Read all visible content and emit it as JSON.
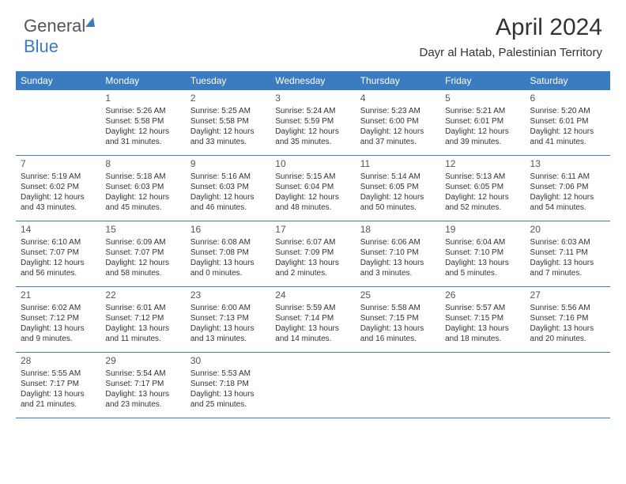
{
  "logo": {
    "text1": "General",
    "text2": "Blue"
  },
  "title": "April 2024",
  "location": "Dayr al Hatab, Palestinian Territory",
  "colors": {
    "header_bg": "#3b7bbf",
    "header_fg": "#ffffff",
    "border": "#3b7bbf",
    "text": "#333333"
  },
  "day_headers": [
    "Sunday",
    "Monday",
    "Tuesday",
    "Wednesday",
    "Thursday",
    "Friday",
    "Saturday"
  ],
  "weeks": [
    [
      null,
      {
        "n": "1",
        "sr": "Sunrise: 5:26 AM",
        "ss": "Sunset: 5:58 PM",
        "d1": "Daylight: 12 hours",
        "d2": "and 31 minutes."
      },
      {
        "n": "2",
        "sr": "Sunrise: 5:25 AM",
        "ss": "Sunset: 5:58 PM",
        "d1": "Daylight: 12 hours",
        "d2": "and 33 minutes."
      },
      {
        "n": "3",
        "sr": "Sunrise: 5:24 AM",
        "ss": "Sunset: 5:59 PM",
        "d1": "Daylight: 12 hours",
        "d2": "and 35 minutes."
      },
      {
        "n": "4",
        "sr": "Sunrise: 5:23 AM",
        "ss": "Sunset: 6:00 PM",
        "d1": "Daylight: 12 hours",
        "d2": "and 37 minutes."
      },
      {
        "n": "5",
        "sr": "Sunrise: 5:21 AM",
        "ss": "Sunset: 6:01 PM",
        "d1": "Daylight: 12 hours",
        "d2": "and 39 minutes."
      },
      {
        "n": "6",
        "sr": "Sunrise: 5:20 AM",
        "ss": "Sunset: 6:01 PM",
        "d1": "Daylight: 12 hours",
        "d2": "and 41 minutes."
      }
    ],
    [
      {
        "n": "7",
        "sr": "Sunrise: 5:19 AM",
        "ss": "Sunset: 6:02 PM",
        "d1": "Daylight: 12 hours",
        "d2": "and 43 minutes."
      },
      {
        "n": "8",
        "sr": "Sunrise: 5:18 AM",
        "ss": "Sunset: 6:03 PM",
        "d1": "Daylight: 12 hours",
        "d2": "and 45 minutes."
      },
      {
        "n": "9",
        "sr": "Sunrise: 5:16 AM",
        "ss": "Sunset: 6:03 PM",
        "d1": "Daylight: 12 hours",
        "d2": "and 46 minutes."
      },
      {
        "n": "10",
        "sr": "Sunrise: 5:15 AM",
        "ss": "Sunset: 6:04 PM",
        "d1": "Daylight: 12 hours",
        "d2": "and 48 minutes."
      },
      {
        "n": "11",
        "sr": "Sunrise: 5:14 AM",
        "ss": "Sunset: 6:05 PM",
        "d1": "Daylight: 12 hours",
        "d2": "and 50 minutes."
      },
      {
        "n": "12",
        "sr": "Sunrise: 5:13 AM",
        "ss": "Sunset: 6:05 PM",
        "d1": "Daylight: 12 hours",
        "d2": "and 52 minutes."
      },
      {
        "n": "13",
        "sr": "Sunrise: 6:11 AM",
        "ss": "Sunset: 7:06 PM",
        "d1": "Daylight: 12 hours",
        "d2": "and 54 minutes."
      }
    ],
    [
      {
        "n": "14",
        "sr": "Sunrise: 6:10 AM",
        "ss": "Sunset: 7:07 PM",
        "d1": "Daylight: 12 hours",
        "d2": "and 56 minutes."
      },
      {
        "n": "15",
        "sr": "Sunrise: 6:09 AM",
        "ss": "Sunset: 7:07 PM",
        "d1": "Daylight: 12 hours",
        "d2": "and 58 minutes."
      },
      {
        "n": "16",
        "sr": "Sunrise: 6:08 AM",
        "ss": "Sunset: 7:08 PM",
        "d1": "Daylight: 13 hours",
        "d2": "and 0 minutes."
      },
      {
        "n": "17",
        "sr": "Sunrise: 6:07 AM",
        "ss": "Sunset: 7:09 PM",
        "d1": "Daylight: 13 hours",
        "d2": "and 2 minutes."
      },
      {
        "n": "18",
        "sr": "Sunrise: 6:06 AM",
        "ss": "Sunset: 7:10 PM",
        "d1": "Daylight: 13 hours",
        "d2": "and 3 minutes."
      },
      {
        "n": "19",
        "sr": "Sunrise: 6:04 AM",
        "ss": "Sunset: 7:10 PM",
        "d1": "Daylight: 13 hours",
        "d2": "and 5 minutes."
      },
      {
        "n": "20",
        "sr": "Sunrise: 6:03 AM",
        "ss": "Sunset: 7:11 PM",
        "d1": "Daylight: 13 hours",
        "d2": "and 7 minutes."
      }
    ],
    [
      {
        "n": "21",
        "sr": "Sunrise: 6:02 AM",
        "ss": "Sunset: 7:12 PM",
        "d1": "Daylight: 13 hours",
        "d2": "and 9 minutes."
      },
      {
        "n": "22",
        "sr": "Sunrise: 6:01 AM",
        "ss": "Sunset: 7:12 PM",
        "d1": "Daylight: 13 hours",
        "d2": "and 11 minutes."
      },
      {
        "n": "23",
        "sr": "Sunrise: 6:00 AM",
        "ss": "Sunset: 7:13 PM",
        "d1": "Daylight: 13 hours",
        "d2": "and 13 minutes."
      },
      {
        "n": "24",
        "sr": "Sunrise: 5:59 AM",
        "ss": "Sunset: 7:14 PM",
        "d1": "Daylight: 13 hours",
        "d2": "and 14 minutes."
      },
      {
        "n": "25",
        "sr": "Sunrise: 5:58 AM",
        "ss": "Sunset: 7:15 PM",
        "d1": "Daylight: 13 hours",
        "d2": "and 16 minutes."
      },
      {
        "n": "26",
        "sr": "Sunrise: 5:57 AM",
        "ss": "Sunset: 7:15 PM",
        "d1": "Daylight: 13 hours",
        "d2": "and 18 minutes."
      },
      {
        "n": "27",
        "sr": "Sunrise: 5:56 AM",
        "ss": "Sunset: 7:16 PM",
        "d1": "Daylight: 13 hours",
        "d2": "and 20 minutes."
      }
    ],
    [
      {
        "n": "28",
        "sr": "Sunrise: 5:55 AM",
        "ss": "Sunset: 7:17 PM",
        "d1": "Daylight: 13 hours",
        "d2": "and 21 minutes."
      },
      {
        "n": "29",
        "sr": "Sunrise: 5:54 AM",
        "ss": "Sunset: 7:17 PM",
        "d1": "Daylight: 13 hours",
        "d2": "and 23 minutes."
      },
      {
        "n": "30",
        "sr": "Sunrise: 5:53 AM",
        "ss": "Sunset: 7:18 PM",
        "d1": "Daylight: 13 hours",
        "d2": "and 25 minutes."
      },
      null,
      null,
      null,
      null
    ]
  ]
}
